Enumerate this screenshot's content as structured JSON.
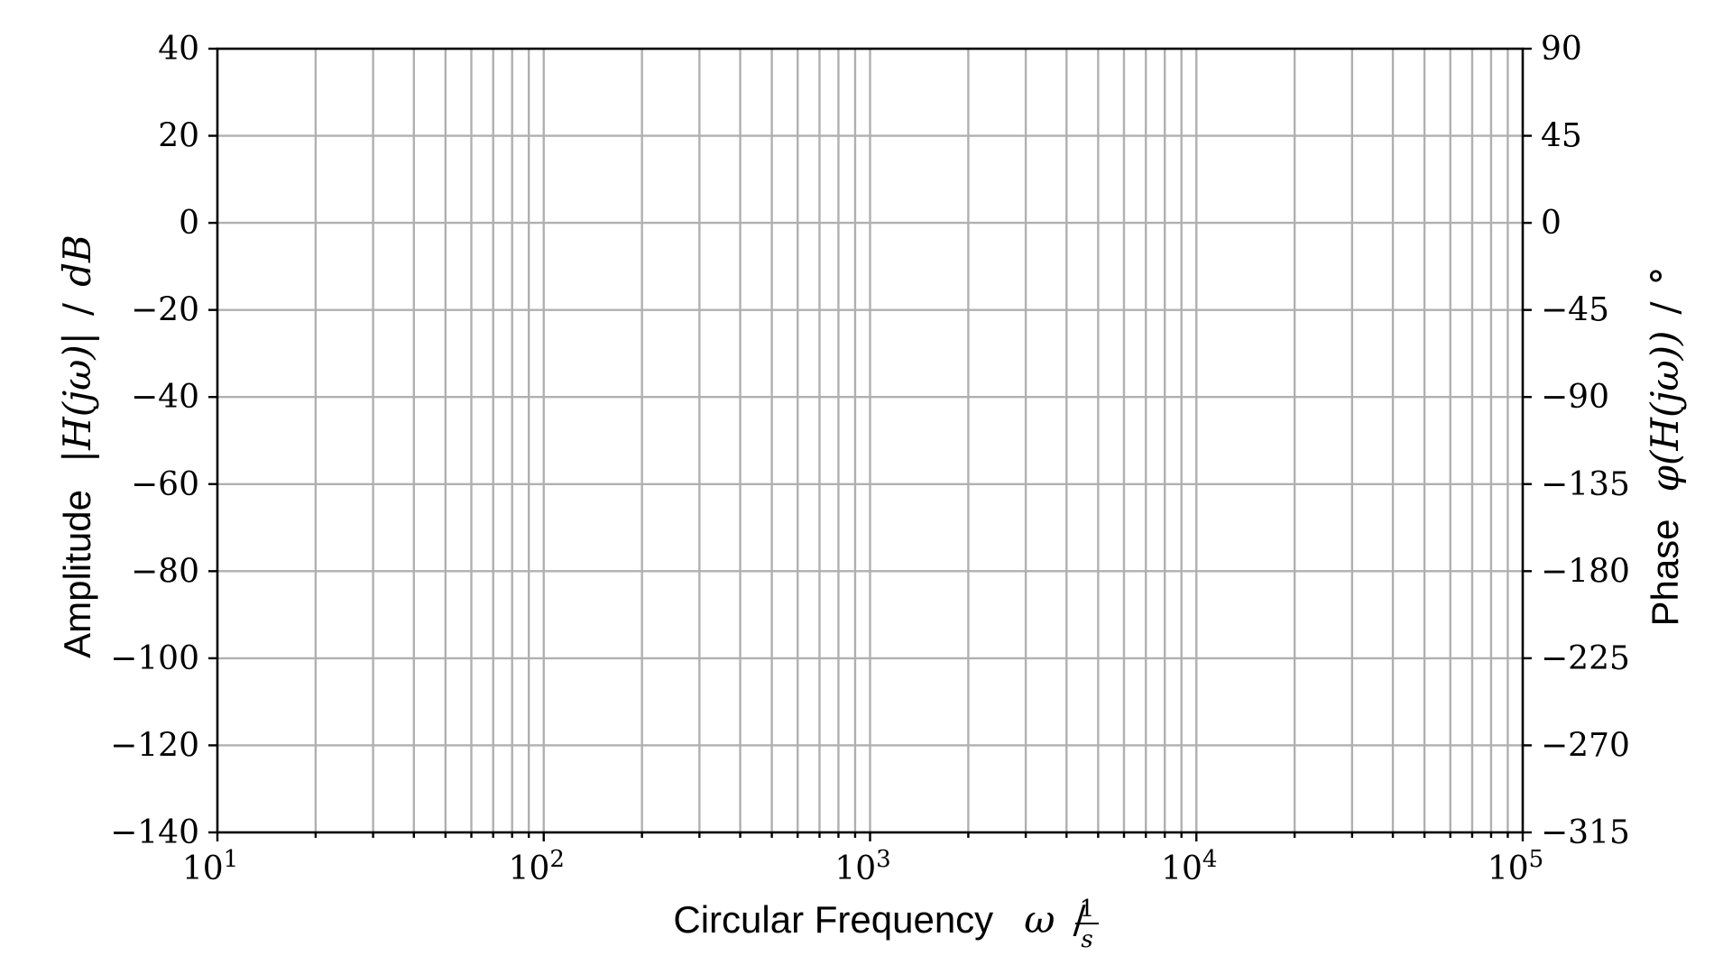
{
  "chart_data": {
    "type": "line",
    "title": "",
    "xlabel": "Circular Frequency",
    "xlabel_symbol": "ω",
    "xlabel_unit_num": "1",
    "xlabel_unit_den": "s",
    "ylabel_left": "Amplitude",
    "ylabel_left_symbol": "|H(jω)|",
    "ylabel_left_unit": "dB",
    "ylabel_right": "Phase",
    "ylabel_right_symbol": "φ(H(jω))",
    "ylabel_right_unit": "°",
    "x_scale": "log",
    "xlim": [
      10,
      100000
    ],
    "x_major_ticks": [
      {
        "value": 10,
        "base": "10",
        "exp": "1"
      },
      {
        "value": 100,
        "base": "10",
        "exp": "2"
      },
      {
        "value": 1000,
        "base": "10",
        "exp": "3"
      },
      {
        "value": 10000,
        "base": "10",
        "exp": "4"
      },
      {
        "value": 100000,
        "base": "10",
        "exp": "5"
      }
    ],
    "ylim_left": [
      -140,
      40
    ],
    "y_left_ticks": [
      40,
      20,
      0,
      -20,
      -40,
      -60,
      -80,
      -100,
      -120,
      -140
    ],
    "y_left_tick_labels": [
      "40",
      "20",
      "0",
      "−20",
      "−40",
      "−60",
      "−80",
      "−100",
      "−120",
      "−140"
    ],
    "ylim_right": [
      -315,
      90
    ],
    "y_right_ticks": [
      90,
      45,
      0,
      -45,
      -90,
      -135,
      -180,
      -225,
      -270,
      -315
    ],
    "y_right_tick_labels": [
      "90",
      "45",
      "0",
      "−45",
      "−90",
      "−135",
      "−180",
      "−225",
      "−270",
      "−315"
    ],
    "grid": true,
    "series": []
  }
}
